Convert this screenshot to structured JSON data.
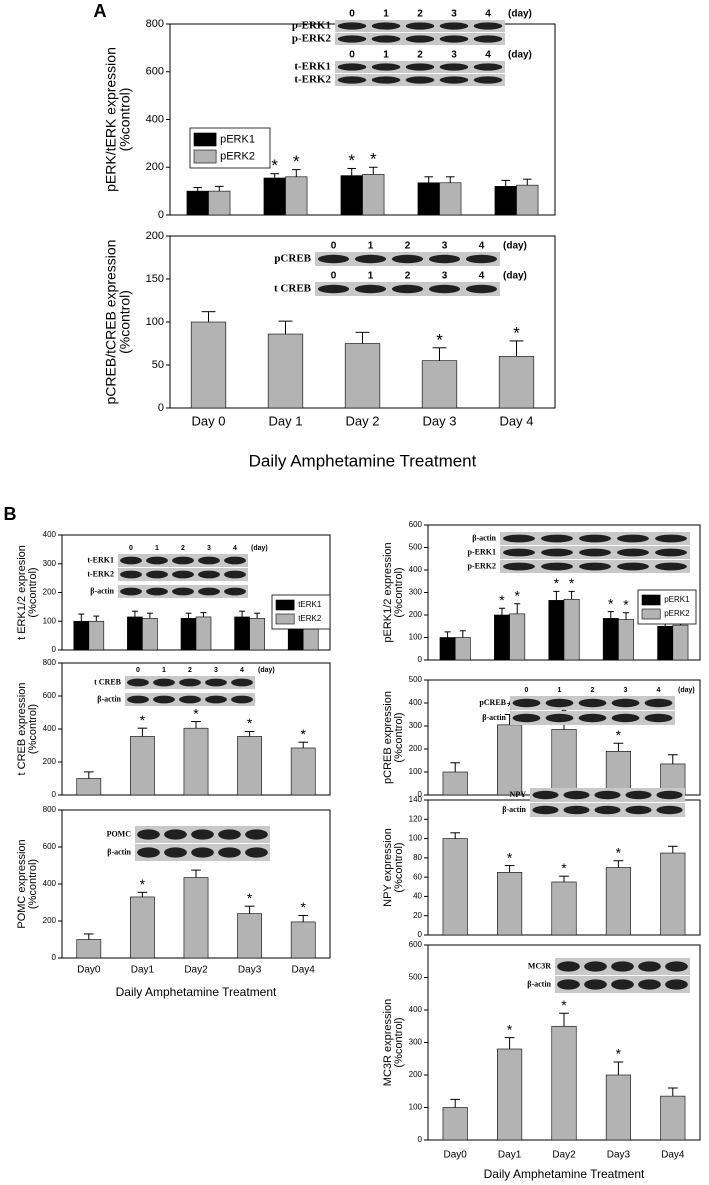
{
  "panel_labels": [
    "A",
    "B"
  ],
  "chart_data": [
    {
      "type": "bar",
      "ylabel": [
        "pERK/tERK expression",
        "(%control)"
      ],
      "ylim": [
        0,
        800
      ],
      "yticks": [
        0,
        200,
        400,
        600,
        800
      ],
      "categories": [
        null,
        null,
        null,
        null,
        null
      ],
      "legend": true,
      "series": [
        {
          "name": "pERK1",
          "color": "#000000",
          "values": [
            100,
            155,
            165,
            135,
            120
          ],
          "errors": [
            15,
            18,
            30,
            25,
            25
          ],
          "stars": [
            null,
            "*",
            "*",
            null,
            null
          ]
        },
        {
          "name": "pERK2",
          "color": "#b3b3b3",
          "values": [
            100,
            160,
            170,
            135,
            125
          ],
          "errors": [
            20,
            30,
            30,
            25,
            25
          ],
          "stars": [
            null,
            "*",
            "*",
            null,
            null
          ]
        }
      ],
      "blot": [
        {
          "days": [
            "0",
            "1",
            "2",
            "3",
            "4"
          ],
          "unit": "(day)",
          "labels": [
            "p-ERK1",
            "p-ERK2"
          ]
        },
        {
          "days": [
            "0",
            "1",
            "2",
            "3",
            "4"
          ],
          "unit": "(day)",
          "labels": [
            "t-ERK1",
            "t-ERK2"
          ]
        }
      ]
    },
    {
      "type": "bar",
      "ylabel": [
        "pCREB/tCREB expression",
        "(%control)"
      ],
      "ylim": [
        0,
        200
      ],
      "yticks": [
        0,
        50,
        100,
        150,
        200
      ],
      "categories": [
        "Day 0",
        "Day 1",
        "Day 2",
        "Day 3",
        "Day 4"
      ],
      "xlabel": "Daily Amphetamine Treatment",
      "legend": false,
      "series": [
        {
          "color": "#b3b3b3",
          "values": [
            100,
            86,
            75,
            55,
            60
          ],
          "errors": [
            12,
            15,
            13,
            15,
            18
          ],
          "stars": [
            null,
            null,
            null,
            "*",
            "*"
          ]
        }
      ],
      "blot": [
        {
          "days": [
            "0",
            "1",
            "2",
            "3",
            "4"
          ],
          "unit": "(day)",
          "labels": [
            "pCREB"
          ]
        },
        {
          "days": [
            "0",
            "1",
            "2",
            "3",
            "4"
          ],
          "unit": "(day)",
          "labels": [
            "t CREB"
          ]
        }
      ]
    },
    {
      "type": "bar",
      "ylabel": [
        "t ERK1/2 expresion",
        "(%control)"
      ],
      "ylim": [
        0,
        400
      ],
      "yticks": [
        0,
        100,
        200,
        300,
        400
      ],
      "categories": [
        null,
        null,
        null,
        null,
        null
      ],
      "legend": true,
      "series": [
        {
          "name": "tERK1",
          "color": "#000000",
          "values": [
            100,
            115,
            110,
            115,
            110
          ],
          "errors": [
            25,
            20,
            18,
            20,
            22
          ],
          "stars": [
            null,
            null,
            null,
            null,
            null
          ]
        },
        {
          "name": "tERK2",
          "color": "#b3b3b3",
          "values": [
            100,
            110,
            115,
            110,
            110
          ],
          "errors": [
            18,
            18,
            15,
            18,
            20
          ],
          "stars": [
            null,
            null,
            null,
            null,
            null
          ]
        }
      ],
      "blot": [
        {
          "days": [
            "0",
            "1",
            "2",
            "3",
            "4"
          ],
          "unit": "(day)",
          "labels": [
            "t-ERK1",
            "t-ERK2"
          ]
        },
        {
          "labels": [
            "β-actin"
          ]
        }
      ]
    },
    {
      "type": "bar",
      "ylabel": [
        "t CREB expression",
        "(%control)"
      ],
      "ylim": [
        0,
        800
      ],
      "yticks": [
        0,
        200,
        400,
        600,
        800
      ],
      "categories": [
        null,
        null,
        null,
        null,
        null
      ],
      "legend": false,
      "series": [
        {
          "color": "#b3b3b3",
          "values": [
            100,
            355,
            405,
            355,
            285
          ],
          "errors": [
            40,
            50,
            40,
            30,
            35
          ],
          "stars": [
            null,
            "*",
            "*",
            "*",
            "*"
          ]
        }
      ],
      "blot": [
        {
          "days": [
            "0",
            "1",
            "2",
            "3",
            "4"
          ],
          "unit": "(day)",
          "labels": [
            "t CREB"
          ]
        },
        {
          "labels": [
            "β-actin"
          ]
        }
      ]
    },
    {
      "type": "bar",
      "ylabel": [
        "POMC expression",
        "(%control)"
      ],
      "ylim": [
        0,
        800
      ],
      "yticks": [
        0,
        200,
        400,
        600,
        800
      ],
      "categories": [
        "Day0",
        "Day1",
        "Day2",
        "Day3",
        "Day4"
      ],
      "xlabel": "Daily Amphetamine Treatment",
      "legend": false,
      "series": [
        {
          "color": "#b3b3b3",
          "values": [
            100,
            330,
            435,
            240,
            195
          ],
          "errors": [
            30,
            25,
            40,
            40,
            35
          ],
          "stars": [
            null,
            "*",
            null,
            "*",
            "*"
          ]
        }
      ],
      "blot": [
        {
          "labels": [
            "POMC",
            "β-actin"
          ]
        }
      ]
    },
    {
      "type": "bar",
      "ylabel": [
        "pERK1/2 expression",
        "(%control)"
      ],
      "ylim": [
        0,
        600
      ],
      "yticks": [
        0,
        100,
        200,
        300,
        400,
        500,
        600
      ],
      "categories": [
        null,
        null,
        null,
        null,
        null
      ],
      "legend": true,
      "series": [
        {
          "name": "pERK1",
          "color": "#000000",
          "values": [
            100,
            200,
            265,
            185,
            150
          ],
          "errors": [
            25,
            30,
            40,
            30,
            25
          ],
          "stars": [
            null,
            "*",
            "*",
            "*",
            "*"
          ]
        },
        {
          "name": "pERK2",
          "color": "#b3b3b3",
          "values": [
            100,
            205,
            270,
            180,
            155
          ],
          "errors": [
            30,
            45,
            35,
            30,
            25
          ],
          "stars": [
            null,
            "*",
            "*",
            "*",
            "*"
          ]
        }
      ],
      "blot": [
        {
          "labels": [
            "β-actin",
            "p-ERK1",
            "p-ERK2"
          ]
        }
      ]
    },
    {
      "type": "bar",
      "ylabel": [
        "pCREB expression",
        "(%control)"
      ],
      "ylim": [
        0,
        500
      ],
      "yticks": [
        0,
        100,
        200,
        300,
        400,
        500
      ],
      "categories": [
        null,
        null,
        null,
        null,
        null
      ],
      "legend": false,
      "series": [
        {
          "color": "#b3b3b3",
          "values": [
            100,
            305,
            285,
            190,
            135
          ],
          "errors": [
            40,
            45,
            35,
            35,
            40
          ],
          "stars": [
            null,
            "*",
            "*",
            "*",
            null
          ]
        }
      ],
      "blot": [
        {
          "days": [
            "0",
            "1",
            "2",
            "3",
            "4"
          ],
          "unit": "(day)",
          "labels": [
            "pCREB",
            "β-actin"
          ]
        }
      ]
    },
    {
      "type": "bar",
      "ylabel": [
        "NPY expression",
        "(%control)"
      ],
      "ylim": [
        0,
        140
      ],
      "yticks": [
        0,
        20,
        40,
        60,
        80,
        100,
        120,
        140
      ],
      "categories": [
        null,
        null,
        null,
        null,
        null
      ],
      "legend": false,
      "series": [
        {
          "color": "#b3b3b3",
          "values": [
            100,
            65,
            55,
            70,
            85
          ],
          "errors": [
            6,
            7,
            6,
            7,
            7
          ],
          "stars": [
            null,
            "*",
            "*",
            "*",
            null
          ]
        }
      ],
      "blot": [
        {
          "labels": [
            "NPY",
            "β-actin"
          ]
        }
      ]
    },
    {
      "type": "bar",
      "ylabel": [
        "MC3R expression",
        "(%control)"
      ],
      "ylim": [
        0,
        600
      ],
      "yticks": [
        0,
        100,
        200,
        300,
        400,
        500,
        600
      ],
      "categories": [
        "Day0",
        "Day1",
        "Day2",
        "Day3",
        "Day4"
      ],
      "xlabel": "Daily Amphetamine Treatment",
      "legend": false,
      "series": [
        {
          "color": "#b3b3b3",
          "values": [
            100,
            280,
            350,
            200,
            135
          ],
          "errors": [
            25,
            35,
            40,
            40,
            25
          ],
          "stars": [
            null,
            "*",
            "*",
            "*",
            null
          ]
        }
      ],
      "blot": [
        {
          "labels": [
            "MC3R",
            "β-actin"
          ]
        }
      ]
    }
  ]
}
